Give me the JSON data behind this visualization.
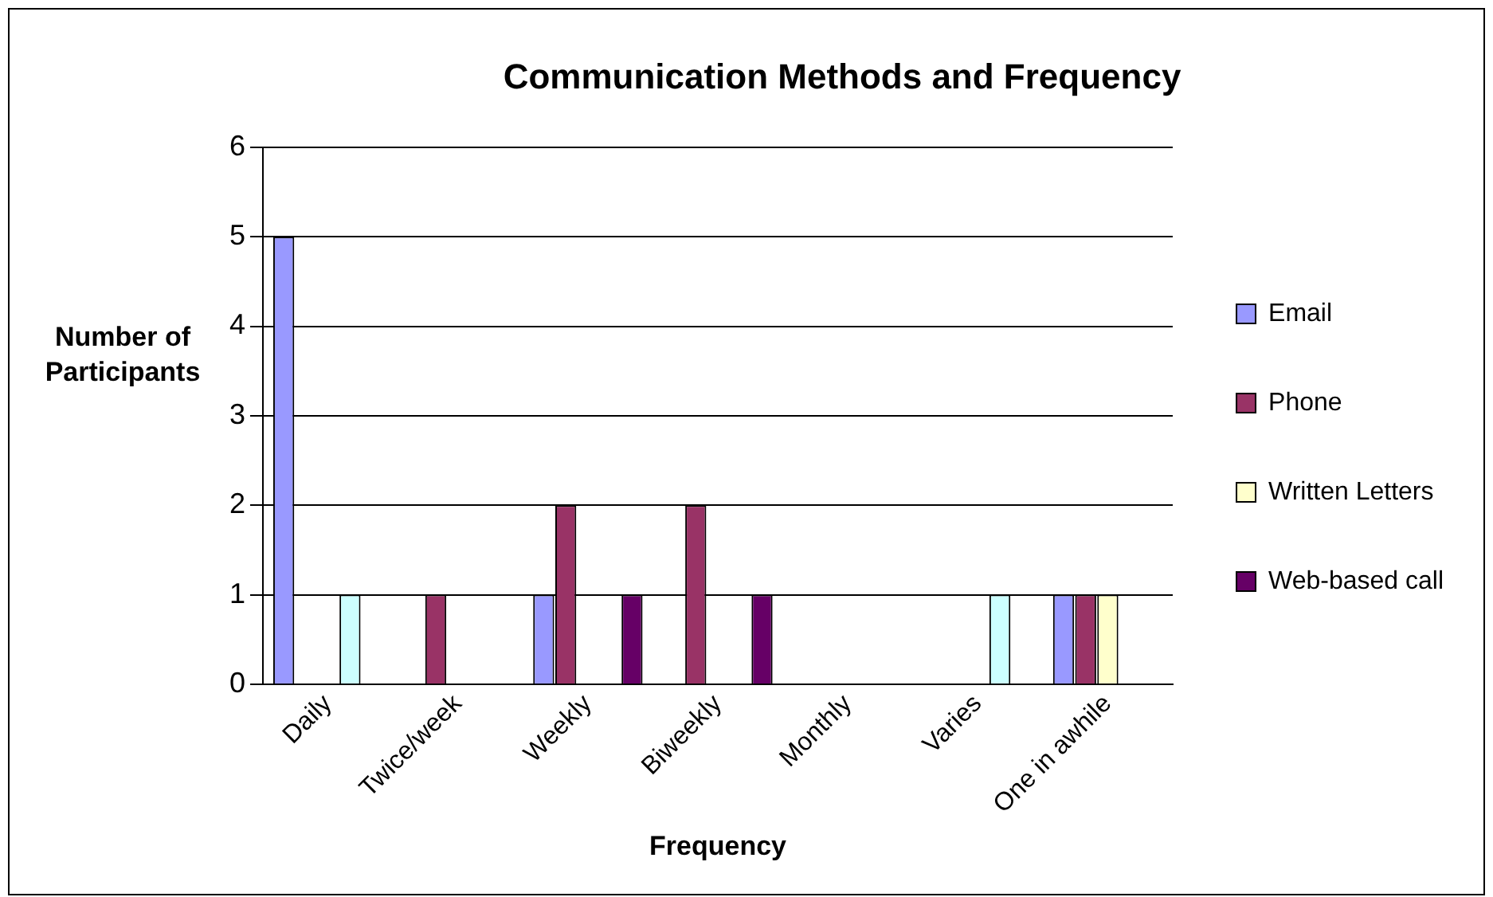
{
  "chart_data": {
    "type": "bar",
    "title": "Communication Methods and Frequency",
    "xlabel": "Frequency",
    "ylabel": "Number of Participants",
    "categories": [
      "Daily",
      "Twice/week",
      "Weekly",
      "Biweekly",
      "Monthly",
      "Varies",
      "One in awhile"
    ],
    "series": [
      {
        "name": "Email",
        "color": "#9999ff",
        "values": [
          5,
          0,
          1,
          0,
          0,
          0,
          1
        ]
      },
      {
        "name": "Phone",
        "color": "#993366",
        "values": [
          0,
          1,
          2,
          2,
          0,
          0,
          1
        ]
      },
      {
        "name": "Written Letters",
        "color": "#ffffcc",
        "values": [
          0,
          0,
          0,
          0,
          0,
          0,
          1
        ]
      },
      {
        "color": "#ccffff",
        "values": [
          1,
          0,
          0,
          0,
          0,
          1,
          0
        ]
      },
      {
        "name": "Web-based call",
        "color": "#660066",
        "values": [
          0,
          0,
          1,
          1,
          0,
          0,
          0
        ]
      }
    ],
    "ylim": [
      0,
      6
    ],
    "yticks": [
      0,
      1,
      2,
      3,
      4,
      5,
      6
    ],
    "grid": "y",
    "legend": "right"
  }
}
